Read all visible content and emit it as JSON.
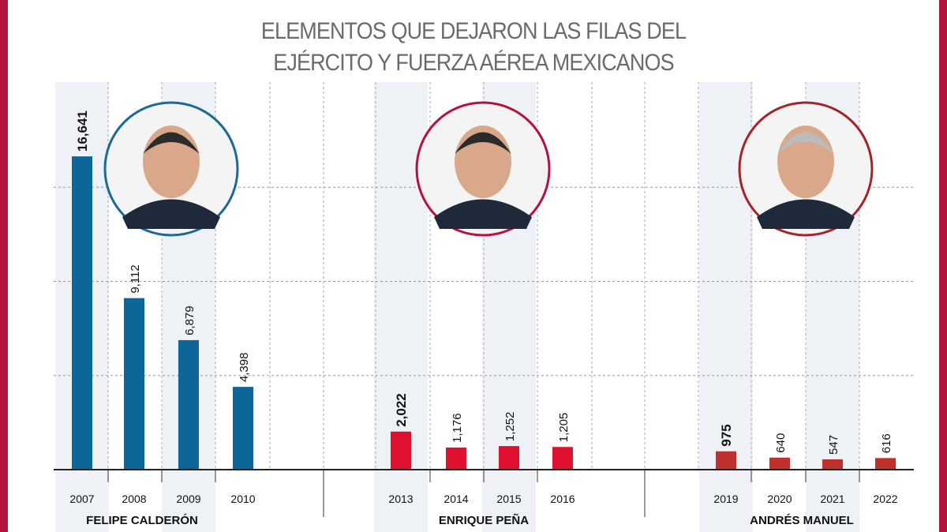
{
  "chart_data": {
    "type": "bar",
    "title_lines": [
      "ELEMENTOS QUE DEJARON LAS FILAS DEL",
      "EJÉRCITO Y FUERZA AÉREA MEXICANOS"
    ],
    "ylim": [
      0,
      20000
    ],
    "grid": true,
    "categories": [
      "2007",
      "2008",
      "2009",
      "2010",
      "2013",
      "2014",
      "2015",
      "2016",
      "2019",
      "2020",
      "2021",
      "2022"
    ],
    "values": [
      16641,
      9112,
      6879,
      4398,
      2022,
      1176,
      1252,
      1205,
      975,
      640,
      547,
      616
    ],
    "value_labels": [
      "16,641",
      "9,112",
      "6,879",
      "4,398",
      "2,022",
      "1,176",
      "1,252",
      "1,205",
      "975",
      "640",
      "547",
      "616"
    ],
    "groups": [
      {
        "label": "FELIPE CALDERÓN",
        "years": [
          "2007",
          "2008",
          "2009",
          "2010"
        ],
        "color": "#0e6598",
        "ring": "#1c6a93"
      },
      {
        "label": "ENRIQUE PEÑA",
        "years": [
          "2013",
          "2014",
          "2015",
          "2016"
        ],
        "color": "#e0102f",
        "ring": "#b5123e"
      },
      {
        "label": "ANDRÉS MANUEL",
        "years": [
          "2019",
          "2020",
          "2021",
          "2022"
        ],
        "color": "#c0312d",
        "ring": "#a3242a"
      }
    ]
  }
}
